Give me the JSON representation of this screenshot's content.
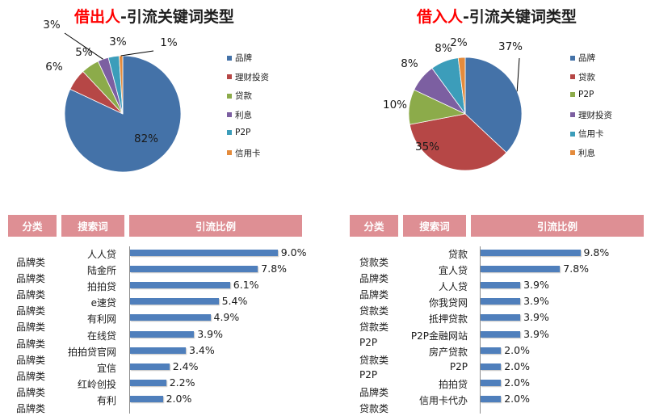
{
  "left_title": {
    "highlight": "借出人",
    "rest": "-引流关键词类型"
  },
  "right_title": {
    "highlight": "借入人",
    "rest": "-引流关键词类型"
  },
  "headers": {
    "category": "分类",
    "keyword": "搜索词",
    "ratio": "引流比例"
  },
  "colors": {
    "brand": "#4472a8",
    "finance": "#b64746",
    "loan": "#8cab4a",
    "interest": "#7c5fa1",
    "p2p": "#3c9dba",
    "card": "#e48b3c",
    "bar": "#4f7fbc",
    "header": "#de8f94",
    "highlight": "#ff0000"
  },
  "chart_data": [
    {
      "type": "pie",
      "title": "借出人-引流关键词类型",
      "slices": [
        {
          "label": "品牌",
          "value": 82,
          "text": "82%",
          "color": "#4472a8"
        },
        {
          "label": "理财投资",
          "value": 6,
          "text": "6%",
          "color": "#b64746"
        },
        {
          "label": "贷款",
          "value": 5,
          "text": "5%",
          "color": "#8cab4a"
        },
        {
          "label": "利息",
          "value": 3,
          "text": "3%",
          "color": "#7c5fa1"
        },
        {
          "label": "P2P",
          "value": 3,
          "text": "3%",
          "color": "#3c9dba"
        },
        {
          "label": "信用卡",
          "value": 1,
          "text": "1%",
          "color": "#e48b3c"
        }
      ],
      "legend": [
        "品牌",
        "理财投资",
        "贷款",
        "利息",
        "P2P",
        "信用卡"
      ],
      "legend_position": "right"
    },
    {
      "type": "pie",
      "title": "借入人-引流关键词类型",
      "slices": [
        {
          "label": "品牌",
          "value": 37,
          "text": "37%",
          "color": "#4472a8"
        },
        {
          "label": "贷款",
          "value": 35,
          "text": "35%",
          "color": "#b64746"
        },
        {
          "label": "P2P",
          "value": 10,
          "text": "10%",
          "color": "#8cab4a"
        },
        {
          "label": "理财投资",
          "value": 8,
          "text": "8%",
          "color": "#7c5fa1"
        },
        {
          "label": "信用卡",
          "value": 8,
          "text": "8%",
          "color": "#3c9dba"
        },
        {
          "label": "利息",
          "value": 2,
          "text": "2%",
          "color": "#e48b3c"
        }
      ],
      "legend": [
        "品牌",
        "贷款",
        "P2P",
        "理财投资",
        "信用卡",
        "利息"
      ],
      "legend_position": "right"
    },
    {
      "type": "bar",
      "orientation": "horizontal",
      "columns": [
        "分类",
        "搜索词",
        "引流比例"
      ],
      "rows": [
        {
          "category": "品牌类",
          "keyword": "人人贷",
          "value": 9.0,
          "label": "9.0%"
        },
        {
          "category": "品牌类",
          "keyword": "陆金所",
          "value": 7.8,
          "label": "7.8%"
        },
        {
          "category": "品牌类",
          "keyword": "拍拍贷",
          "value": 6.1,
          "label": "6.1%"
        },
        {
          "category": "品牌类",
          "keyword": "e速贷",
          "value": 5.4,
          "label": "5.4%"
        },
        {
          "category": "品牌类",
          "keyword": "有利网",
          "value": 4.9,
          "label": "4.9%"
        },
        {
          "category": "品牌类",
          "keyword": "在线贷",
          "value": 3.9,
          "label": "3.9%"
        },
        {
          "category": "品牌类",
          "keyword": "拍拍贷官网",
          "value": 3.4,
          "label": "3.4%"
        },
        {
          "category": "品牌类",
          "keyword": "宜信",
          "value": 2.4,
          "label": "2.4%"
        },
        {
          "category": "品牌类",
          "keyword": "红岭创投",
          "value": 2.2,
          "label": "2.2%"
        },
        {
          "category": "品牌类",
          "keyword": "有利",
          "value": 2.0,
          "label": "2.0%"
        }
      ]
    },
    {
      "type": "bar",
      "orientation": "horizontal",
      "columns": [
        "分类",
        "搜索词",
        "引流比例"
      ],
      "rows": [
        {
          "category": "贷款类",
          "keyword": "贷款",
          "value": 9.8,
          "label": "9.8%"
        },
        {
          "category": "品牌类",
          "keyword": "宜人贷",
          "value": 7.8,
          "label": "7.8%"
        },
        {
          "category": "品牌类",
          "keyword": "人人贷",
          "value": 3.9,
          "label": "3.9%"
        },
        {
          "category": "贷款类",
          "keyword": "你我贷网",
          "value": 3.9,
          "label": "3.9%"
        },
        {
          "category": "贷款类",
          "keyword": "抵押贷款",
          "value": 3.9,
          "label": "3.9%"
        },
        {
          "category": "P2P",
          "keyword": "P2P金融网站",
          "value": 3.9,
          "label": "3.9%"
        },
        {
          "category": "贷款类",
          "keyword": "房产贷款",
          "value": 2.0,
          "label": "2.0%"
        },
        {
          "category": "P2P",
          "keyword": "P2P",
          "value": 2.0,
          "label": "2.0%"
        },
        {
          "category": "品牌类",
          "keyword": "拍拍贷",
          "value": 2.0,
          "label": "2.0%"
        },
        {
          "category": "贷款类",
          "keyword": "信用卡代办",
          "value": 2.0,
          "label": "2.0%"
        }
      ]
    }
  ]
}
